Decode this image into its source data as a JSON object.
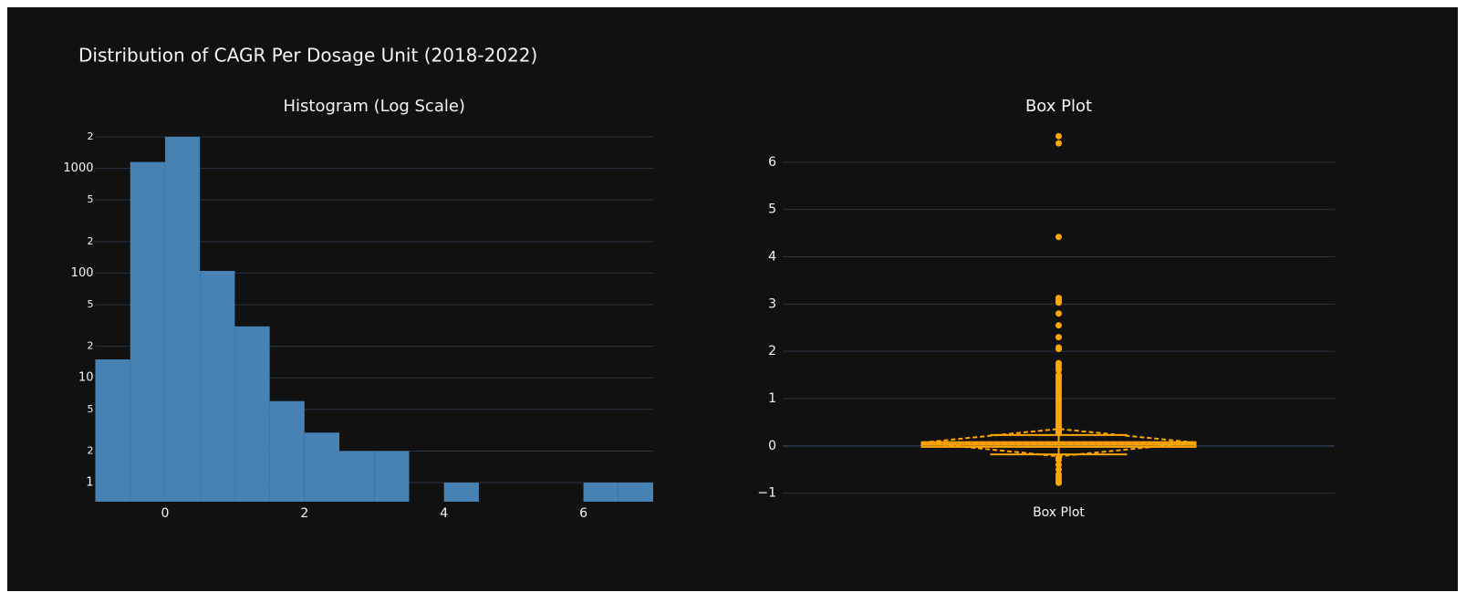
{
  "title": "Distribution of CAGR Per Dosage Unit (2018-2022)",
  "chart_data": [
    {
      "type": "histogram",
      "title": "Histogram (Log Scale)",
      "bins": [
        -1,
        -0.5,
        0,
        0.5,
        1,
        1.5,
        2,
        2.5,
        3,
        3.5,
        4,
        4.5,
        5,
        5.5,
        6,
        6.5,
        7
      ],
      "values": [
        15,
        1150,
        2000,
        105,
        31,
        6,
        3,
        2,
        2,
        0,
        1,
        0,
        0,
        0,
        1,
        1
      ],
      "color": "#4682b4",
      "log_y": true,
      "grid": true,
      "xlim": [
        -1,
        7
      ],
      "xticks": [
        0,
        2,
        4,
        6
      ],
      "ylim": [
        0.657,
        2000
      ],
      "yticks": [
        1,
        {
          "value": 2,
          "label": "2"
        },
        {
          "value": 5,
          "label": "5"
        },
        10,
        {
          "value": 20,
          "label": "2"
        },
        {
          "value": 50,
          "label": "5"
        },
        100,
        {
          "value": 200,
          "label": "2"
        },
        {
          "value": 500,
          "label": "5"
        },
        1000,
        {
          "value": 2000,
          "label": "2"
        }
      ]
    },
    {
      "type": "box",
      "title": "Box Plot",
      "categories": [
        "Box Plot"
      ],
      "color": "#ffa500",
      "grid": true,
      "q1": -0.02,
      "median": 0.03,
      "q3": 0.08,
      "lowerfence": -0.18,
      "upperfence": 0.23,
      "mean": 0.07,
      "sd": 0.29,
      "outliers": [
        6.55,
        6.4,
        4.42,
        3.13,
        3.08,
        3.03,
        2.8,
        2.55,
        2.3,
        2.08,
        2.05,
        1.75,
        1.7,
        1.65,
        1.6,
        1.5,
        1.45,
        1.4,
        1.35,
        1.3,
        1.25,
        1.2,
        1.15,
        1.1,
        1.05,
        1.0,
        0.95,
        0.9,
        0.85,
        0.8,
        0.75,
        0.7,
        0.65,
        0.6,
        0.55,
        0.5,
        0.45,
        0.4,
        0.35,
        0.3,
        0.27,
        -0.25,
        -0.3,
        -0.4,
        -0.5,
        -0.6,
        -0.65,
        -0.7,
        -0.75,
        -0.78
      ],
      "ylim": [
        -1.18,
        6.73
      ],
      "yticks": [
        {
          "value": -1,
          "label": "−1"
        },
        0,
        1,
        2,
        3,
        4,
        5,
        6
      ]
    }
  ]
}
